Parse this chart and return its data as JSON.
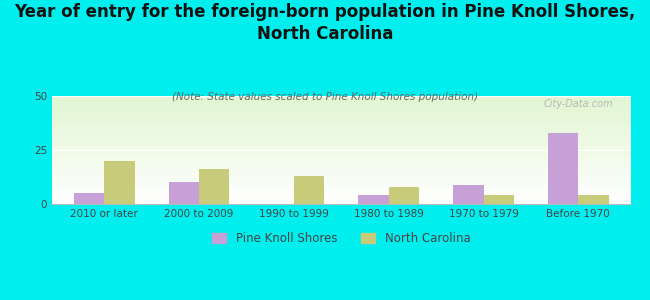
{
  "title": "Year of entry for the foreign-born population in Pine Knoll Shores,\nNorth Carolina",
  "subtitle": "(Note: State values scaled to Pine Knoll Shores population)",
  "categories": [
    "2010 or later",
    "2000 to 2009",
    "1990 to 1999",
    "1980 to 1989",
    "1970 to 1979",
    "Before 1970"
  ],
  "pine_knoll_values": [
    5,
    10,
    0,
    4,
    9,
    33
  ],
  "nc_values": [
    20,
    16,
    13,
    8,
    4,
    4
  ],
  "pine_knoll_color": "#c8a0d8",
  "nc_color": "#c8cc7a",
  "background_color": "#00eeee",
  "ylim": [
    0,
    50
  ],
  "yticks": [
    0,
    25,
    50
  ],
  "bar_width": 0.32,
  "title_fontsize": 12,
  "subtitle_fontsize": 7.5,
  "tick_fontsize": 7.5,
  "legend_fontsize": 8.5,
  "watermark": "City-Data.com"
}
